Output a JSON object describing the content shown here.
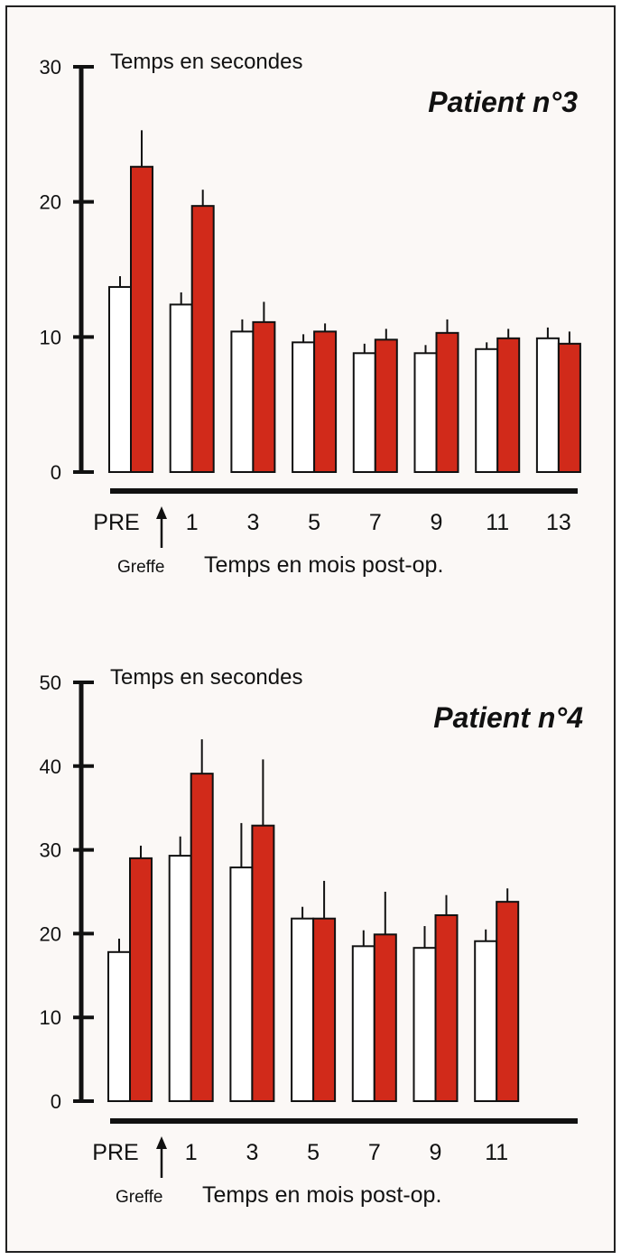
{
  "colors": {
    "series_open": "#ffffff",
    "series_filled": "#d12a1a",
    "axis": "#111111",
    "background": "#fbf8f6"
  },
  "chart_data": [
    {
      "type": "bar",
      "title": "Patient n°3",
      "ylabel": "Temps en secondes",
      "xlabel": "Temps en mois post-op.",
      "annotation": "Greffe",
      "categories": [
        "PRE",
        "1",
        "3",
        "5",
        "7",
        "9",
        "11",
        "13"
      ],
      "ylim": [
        0,
        30
      ],
      "yticks": [
        0,
        10,
        20,
        30
      ],
      "series": [
        {
          "values": [
            13.7,
            12.4,
            10.4,
            9.6,
            8.8,
            8.8,
            9.1,
            9.9
          ],
          "errors": [
            0.8,
            0.9,
            0.9,
            0.6,
            0.7,
            0.6,
            0.5,
            0.8
          ]
        },
        {
          "values": [
            22.6,
            19.7,
            11.1,
            10.4,
            9.8,
            10.3,
            9.9,
            9.5
          ],
          "errors": [
            2.7,
            1.2,
            1.5,
            0.6,
            0.8,
            1.0,
            0.7,
            0.9
          ]
        }
      ]
    },
    {
      "type": "bar",
      "title": "Patient n°4",
      "ylabel": "Temps en secondes",
      "xlabel": "Temps en mois post-op.",
      "annotation": "Greffe",
      "categories": [
        "PRE",
        "1",
        "3",
        "5",
        "7",
        "9",
        "11"
      ],
      "ylim": [
        0,
        50
      ],
      "yticks": [
        0,
        10,
        20,
        30,
        40,
        50
      ],
      "series": [
        {
          "values": [
            17.8,
            29.3,
            27.9,
            21.8,
            18.5,
            18.3,
            19.1
          ],
          "errors": [
            1.6,
            2.3,
            5.3,
            1.4,
            1.9,
            2.6,
            1.4
          ]
        },
        {
          "values": [
            29.0,
            39.1,
            32.9,
            21.8,
            19.9,
            22.2,
            23.8
          ],
          "errors": [
            1.5,
            4.1,
            7.9,
            4.5,
            5.1,
            2.4,
            1.6
          ]
        }
      ]
    }
  ]
}
